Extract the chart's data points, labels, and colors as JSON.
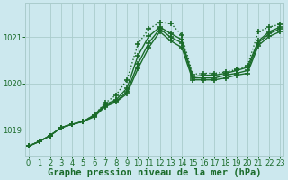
{
  "title": "Graphe pression niveau de la mer (hPa)",
  "bg_color": "#cce8ee",
  "grid_color": "#aacccc",
  "line_color": "#1a6b2a",
  "x_ticks": [
    0,
    1,
    2,
    3,
    4,
    5,
    6,
    7,
    8,
    9,
    10,
    11,
    12,
    13,
    14,
    15,
    16,
    17,
    18,
    19,
    20,
    21,
    22,
    23
  ],
  "y_ticks": [
    1019,
    1020,
    1021
  ],
  "ylim": [
    1018.45,
    1021.75
  ],
  "xlim": [
    -0.3,
    23.3
  ],
  "series": {
    "dotted": [
      1018.65,
      1018.75,
      1018.88,
      1019.05,
      1019.12,
      1019.18,
      1019.32,
      1019.58,
      1019.75,
      1020.08,
      1020.85,
      1021.18,
      1021.32,
      1021.3,
      1021.05,
      1020.2,
      1020.22,
      1020.22,
      1020.25,
      1020.3,
      1020.38,
      1021.12,
      1021.22,
      1021.28
    ],
    "solid1": [
      1018.65,
      1018.75,
      1018.88,
      1019.05,
      1019.12,
      1019.18,
      1019.32,
      1019.55,
      1019.65,
      1019.9,
      1020.6,
      1021.02,
      1021.22,
      1021.08,
      1020.95,
      1020.15,
      1020.18,
      1020.18,
      1020.22,
      1020.28,
      1020.35,
      1020.92,
      1021.12,
      1021.22
    ],
    "solid2": [
      1018.65,
      1018.75,
      1018.88,
      1019.05,
      1019.12,
      1019.18,
      1019.3,
      1019.52,
      1019.62,
      1019.82,
      1020.42,
      1020.88,
      1021.18,
      1021.0,
      1020.88,
      1020.12,
      1020.12,
      1020.12,
      1020.18,
      1020.22,
      1020.28,
      1020.88,
      1021.08,
      1021.18
    ],
    "solid3": [
      1018.65,
      1018.75,
      1018.88,
      1019.05,
      1019.12,
      1019.18,
      1019.28,
      1019.5,
      1019.6,
      1019.78,
      1020.32,
      1020.78,
      1021.12,
      1020.92,
      1020.78,
      1020.08,
      1020.08,
      1020.08,
      1020.12,
      1020.18,
      1020.22,
      1020.82,
      1021.02,
      1021.12
    ]
  },
  "marker": "+",
  "marker_size": 4.0,
  "marker_lw": 1.2,
  "line_width": 1.0,
  "title_fontsize": 7.5,
  "tick_fontsize": 6.0
}
